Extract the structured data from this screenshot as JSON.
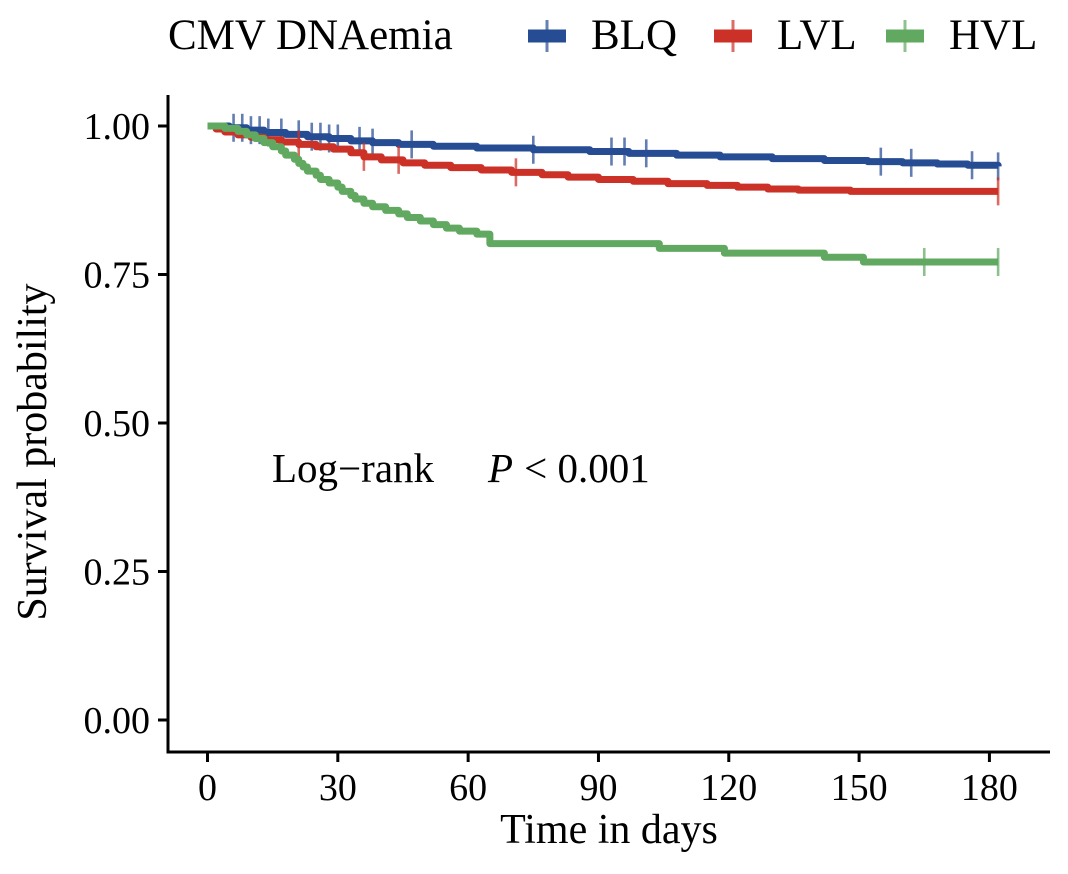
{
  "chart_data": {
    "type": "line",
    "subtype": "kaplan-meier-step-survival",
    "legend_title": "CMV DNAemia",
    "xlabel": "Time in days",
    "ylabel": "Survival probability",
    "annotation": {
      "logrank_label": "Log−rank",
      "p_symbol": "P",
      "p_rest": "< 0.001"
    },
    "x_ticks": [
      {
        "label": "0",
        "value": 0
      },
      {
        "label": "30",
        "value": 30
      },
      {
        "label": "60",
        "value": 60
      },
      {
        "label": "90",
        "value": 90
      },
      {
        "label": "120",
        "value": 120
      },
      {
        "label": "150",
        "value": 150
      },
      {
        "label": "180",
        "value": 180
      }
    ],
    "y_ticks": [
      {
        "label": "0.00",
        "value": 0.0
      },
      {
        "label": "0.25",
        "value": 0.25
      },
      {
        "label": "0.50",
        "value": 0.5
      },
      {
        "label": "0.75",
        "value": 0.75
      },
      {
        "label": "1.00",
        "value": 1.0
      }
    ],
    "xlim": [
      0,
      186
    ],
    "ylim": [
      0,
      1.0
    ],
    "grid": false,
    "legend_position": "top",
    "axis_color": "#000000",
    "background_color": "#ffffff",
    "series": [
      {
        "name": "BLQ",
        "color": "#264C94",
        "steps": [
          [
            0,
            1.0
          ],
          [
            5,
            0.997
          ],
          [
            9,
            0.993
          ],
          [
            13,
            0.989
          ],
          [
            18,
            0.986
          ],
          [
            23,
            0.982
          ],
          [
            28,
            0.979
          ],
          [
            33,
            0.975
          ],
          [
            38,
            0.972
          ],
          [
            44,
            0.969
          ],
          [
            52,
            0.966
          ],
          [
            62,
            0.963
          ],
          [
            75,
            0.96
          ],
          [
            88,
            0.957
          ],
          [
            97,
            0.954
          ],
          [
            108,
            0.951
          ],
          [
            118,
            0.948
          ],
          [
            130,
            0.945
          ],
          [
            142,
            0.942
          ],
          [
            152,
            0.94
          ],
          [
            160,
            0.938
          ],
          [
            168,
            0.936
          ],
          [
            175,
            0.934
          ],
          [
            182,
            0.932
          ]
        ],
        "censor_times": [
          6,
          8,
          10,
          12,
          14,
          17,
          21,
          24,
          26,
          28,
          30,
          35,
          38,
          47,
          75,
          93,
          96,
          101,
          155,
          162,
          176,
          182
        ],
        "final_value": 0.932
      },
      {
        "name": "LVL",
        "color": "#CC3127",
        "steps": [
          [
            0,
            1.0
          ],
          [
            2,
            0.995
          ],
          [
            4,
            0.99
          ],
          [
            7,
            0.985
          ],
          [
            10,
            0.981
          ],
          [
            13,
            0.977
          ],
          [
            17,
            0.973
          ],
          [
            21,
            0.969
          ],
          [
            25,
            0.965
          ],
          [
            29,
            0.961
          ],
          [
            33,
            0.955
          ],
          [
            36,
            0.948
          ],
          [
            40,
            0.943
          ],
          [
            45,
            0.938
          ],
          [
            50,
            0.934
          ],
          [
            56,
            0.93
          ],
          [
            63,
            0.926
          ],
          [
            70,
            0.922
          ],
          [
            77,
            0.918
          ],
          [
            83,
            0.914
          ],
          [
            90,
            0.91
          ],
          [
            98,
            0.907
          ],
          [
            106,
            0.903
          ],
          [
            115,
            0.9
          ],
          [
            122,
            0.897
          ],
          [
            129,
            0.894
          ],
          [
            136,
            0.892
          ],
          [
            148,
            0.89
          ],
          [
            182,
            0.89
          ]
        ],
        "censor_times": [
          21,
          36,
          44,
          71,
          182
        ],
        "final_value": 0.89
      },
      {
        "name": "HVL",
        "color": "#61A960",
        "steps": [
          [
            0,
            1.0
          ],
          [
            4,
            0.996
          ],
          [
            7,
            0.991
          ],
          [
            9,
            0.985
          ],
          [
            11,
            0.979
          ],
          [
            13,
            0.972
          ],
          [
            15,
            0.965
          ],
          [
            17,
            0.958
          ],
          [
            18,
            0.951
          ],
          [
            20,
            0.944
          ],
          [
            21,
            0.937
          ],
          [
            22,
            0.931
          ],
          [
            23,
            0.924
          ],
          [
            25,
            0.917
          ],
          [
            26,
            0.91
          ],
          [
            28,
            0.904
          ],
          [
            30,
            0.897
          ],
          [
            31,
            0.89
          ],
          [
            33,
            0.883
          ],
          [
            34,
            0.877
          ],
          [
            36,
            0.87
          ],
          [
            38,
            0.864
          ],
          [
            41,
            0.858
          ],
          [
            44,
            0.852
          ],
          [
            46,
            0.846
          ],
          [
            49,
            0.84
          ],
          [
            52,
            0.834
          ],
          [
            55,
            0.828
          ],
          [
            58,
            0.823
          ],
          [
            62,
            0.818
          ],
          [
            65,
            0.802
          ],
          [
            104,
            0.794
          ],
          [
            119,
            0.786
          ],
          [
            142,
            0.779
          ],
          [
            151,
            0.771
          ],
          [
            182,
            0.771
          ]
        ],
        "censor_times": [
          165,
          182
        ],
        "final_value": 0.771
      }
    ]
  }
}
